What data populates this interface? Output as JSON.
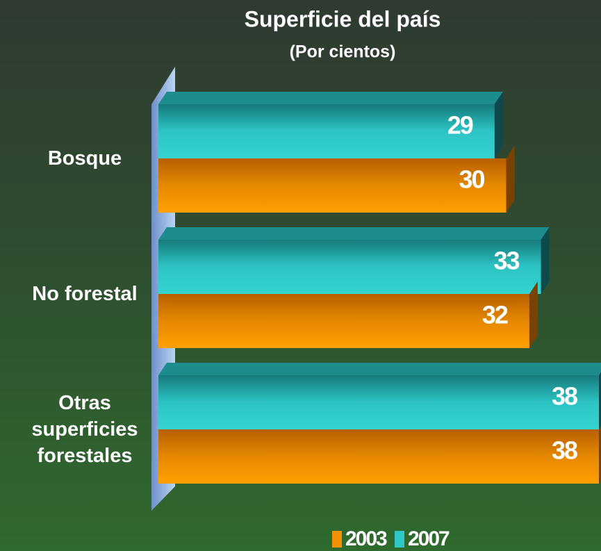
{
  "chart_data": {
    "type": "bar",
    "orientation": "horizontal",
    "title": "Superficie del país",
    "subtitle": "(Por cientos)",
    "categories": [
      "Bosque",
      "No forestal",
      "Otras superficies forestales"
    ],
    "series": [
      {
        "name": "2003",
        "color": "#f39200",
        "values": [
          30,
          32,
          38
        ]
      },
      {
        "name": "2007",
        "color": "#2ec8c8",
        "values": [
          29,
          33,
          38
        ]
      }
    ],
    "legend": "bottom"
  }
}
